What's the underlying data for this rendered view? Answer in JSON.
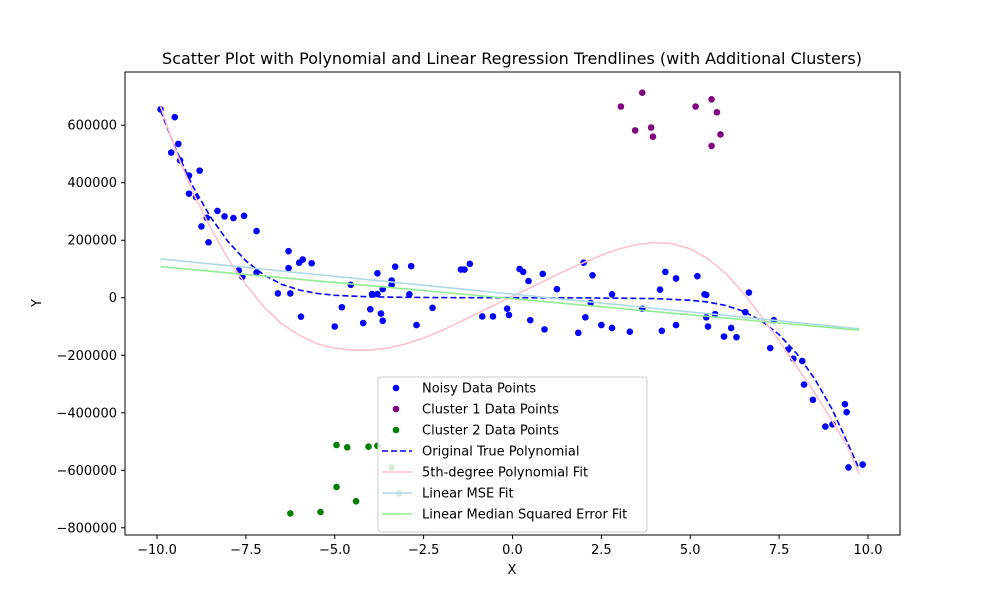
{
  "chart_data": {
    "type": "scatter",
    "title": "Scatter Plot with Polynomial and Linear Regression Trendlines (with Additional Clusters)",
    "xlabel": "X",
    "ylabel": "Y",
    "xlim": [
      -10.9,
      10.9
    ],
    "ylim": [
      -825000,
      785000
    ],
    "xticks": [
      -10.0,
      -7.5,
      -5.0,
      -2.5,
      0.0,
      2.5,
      5.0,
      7.5,
      10.0
    ],
    "xtick_labels": [
      "−10.0",
      "−7.5",
      "−5.0",
      "−2.5",
      "0.0",
      "2.5",
      "5.0",
      "7.5",
      "10.0"
    ],
    "yticks": [
      -800000,
      -600000,
      -400000,
      -200000,
      0,
      200000,
      400000,
      600000
    ],
    "ytick_labels": [
      "−800000",
      "−600000",
      "−400000",
      "−200000",
      "0",
      "200000",
      "400000",
      "600000"
    ],
    "grid": false,
    "legend_position": "lower-center",
    "scatter_series": [
      {
        "name": "Noisy Data Points",
        "color": "#0000ff",
        "points": [
          [
            -9.9,
            655000
          ],
          [
            -9.6,
            505000
          ],
          [
            -9.5,
            628000
          ],
          [
            -9.4,
            535000
          ],
          [
            -9.35,
            478000
          ],
          [
            -9.1,
            425000
          ],
          [
            -9.1,
            362000
          ],
          [
            -8.9,
            350000
          ],
          [
            -8.8,
            442000
          ],
          [
            -8.75,
            248000
          ],
          [
            -8.6,
            278000
          ],
          [
            -8.55,
            193000
          ],
          [
            -8.3,
            302000
          ],
          [
            -8.1,
            283000
          ],
          [
            -7.85,
            277000
          ],
          [
            -7.55,
            285000
          ],
          [
            -7.2,
            232000
          ],
          [
            -7.7,
            95000
          ],
          [
            -7.6,
            73000
          ],
          [
            -7.2,
            88000
          ],
          [
            -6.6,
            15000
          ],
          [
            -6.3,
            162000
          ],
          [
            -6.3,
            103000
          ],
          [
            -6.25,
            15000
          ],
          [
            -6.0,
            122000
          ],
          [
            -5.9,
            133000
          ],
          [
            -5.95,
            -66000
          ],
          [
            -5.65,
            120000
          ],
          [
            -5.0,
            -100000
          ],
          [
            -4.8,
            -33000
          ],
          [
            -4.55,
            45000
          ],
          [
            -4.2,
            -88000
          ],
          [
            -4.0,
            -40000
          ],
          [
            -3.95,
            13000
          ],
          [
            -3.8,
            85000
          ],
          [
            -3.8,
            13000
          ],
          [
            -3.65,
            30000
          ],
          [
            -3.7,
            -55000
          ],
          [
            -3.65,
            -80000
          ],
          [
            -3.4,
            60000
          ],
          [
            -3.3,
            108000
          ],
          [
            -3.4,
            45000
          ],
          [
            -2.85,
            110000
          ],
          [
            -2.9,
            12000
          ],
          [
            -2.7,
            -95000
          ],
          [
            -2.25,
            -35000
          ],
          [
            -1.45,
            98000
          ],
          [
            -1.35,
            98000
          ],
          [
            -1.2,
            118000
          ],
          [
            -0.85,
            -65000
          ],
          [
            -0.55,
            -65000
          ],
          [
            -0.15,
            -38000
          ],
          [
            -0.1,
            -60000
          ],
          [
            0.2,
            100000
          ],
          [
            0.3,
            90000
          ],
          [
            0.45,
            58000
          ],
          [
            0.5,
            -78000
          ],
          [
            0.85,
            83000
          ],
          [
            0.9,
            -110000
          ],
          [
            1.25,
            30000
          ],
          [
            1.85,
            -122000
          ],
          [
            2.0,
            122000
          ],
          [
            2.05,
            -68000
          ],
          [
            2.2,
            -18000
          ],
          [
            2.25,
            78000
          ],
          [
            2.5,
            -95000
          ],
          [
            2.8,
            12000
          ],
          [
            2.8,
            -105000
          ],
          [
            3.3,
            -118000
          ],
          [
            3.65,
            -38000
          ],
          [
            4.15,
            28000
          ],
          [
            4.2,
            -115000
          ],
          [
            4.3,
            90000
          ],
          [
            4.6,
            67000
          ],
          [
            4.6,
            -95000
          ],
          [
            5.2,
            75000
          ],
          [
            5.4,
            12000
          ],
          [
            5.45,
            10000
          ],
          [
            5.45,
            -68000
          ],
          [
            5.5,
            -100000
          ],
          [
            5.7,
            -57000
          ],
          [
            5.95,
            -135000
          ],
          [
            6.15,
            -105000
          ],
          [
            6.3,
            -137000
          ],
          [
            6.55,
            -50000
          ],
          [
            6.65,
            18000
          ],
          [
            7.25,
            -175000
          ],
          [
            7.35,
            -78000
          ],
          [
            7.75,
            -180000
          ],
          [
            7.9,
            -212000
          ],
          [
            8.15,
            -220000
          ],
          [
            8.2,
            -302000
          ],
          [
            8.45,
            -355000
          ],
          [
            8.8,
            -448000
          ],
          [
            9.0,
            -440000
          ],
          [
            9.35,
            -370000
          ],
          [
            9.4,
            -398000
          ],
          [
            9.45,
            -590000
          ],
          [
            9.85,
            -580000
          ]
        ]
      },
      {
        "name": "Cluster 1 Data Points",
        "color": "#800080",
        "points": [
          [
            3.05,
            665000
          ],
          [
            3.45,
            582000
          ],
          [
            3.65,
            713000
          ],
          [
            3.9,
            592000
          ],
          [
            3.95,
            560000
          ],
          [
            5.15,
            665000
          ],
          [
            5.6,
            690000
          ],
          [
            5.6,
            528000
          ],
          [
            5.75,
            645000
          ],
          [
            5.85,
            568000
          ]
        ]
      },
      {
        "name": "Cluster 2 Data Points",
        "color": "#008000",
        "points": [
          [
            -6.25,
            -750000
          ],
          [
            -5.4,
            -745000
          ],
          [
            -4.95,
            -512000
          ],
          [
            -4.95,
            -658000
          ],
          [
            -4.65,
            -520000
          ],
          [
            -4.4,
            -708000
          ],
          [
            -4.05,
            -518000
          ],
          [
            -3.8,
            -515000
          ],
          [
            -3.4,
            -590000
          ],
          [
            -3.2,
            -680000
          ]
        ]
      }
    ],
    "line_series": [
      {
        "name": "Original True Polynomial",
        "color": "#0000ff",
        "style": "dashed",
        "points": [
          [
            -9.9,
            650000
          ],
          [
            -9.5,
            525000
          ],
          [
            -9.0,
            390000
          ],
          [
            -8.5,
            282000
          ],
          [
            -8.0,
            195000
          ],
          [
            -7.5,
            128000
          ],
          [
            -7.0,
            80000
          ],
          [
            -6.5,
            47000
          ],
          [
            -6.0,
            27000
          ],
          [
            -5.5,
            15000
          ],
          [
            -5.0,
            8500
          ],
          [
            -4.0,
            3000
          ],
          [
            -3.0,
            1500
          ],
          [
            -2.0,
            500
          ],
          [
            -1.0,
            100
          ],
          [
            0.0,
            0
          ],
          [
            1.0,
            -100
          ],
          [
            2.0,
            -500
          ],
          [
            3.0,
            -1500
          ],
          [
            4.0,
            -3000
          ],
          [
            5.0,
            -8500
          ],
          [
            5.5,
            -15000
          ],
          [
            6.0,
            -27000
          ],
          [
            6.5,
            -47000
          ],
          [
            7.0,
            -80000
          ],
          [
            7.5,
            -128000
          ],
          [
            8.0,
            -195000
          ],
          [
            8.5,
            -282000
          ],
          [
            9.0,
            -390000
          ],
          [
            9.5,
            -525000
          ],
          [
            9.75,
            -595000
          ]
        ]
      },
      {
        "name": "5th-degree Polynomial Fit",
        "color": "#ffc0cb",
        "style": "solid",
        "points": [
          [
            -9.9,
            665000
          ],
          [
            -9.5,
            520000
          ],
          [
            -9.0,
            370000
          ],
          [
            -8.5,
            245000
          ],
          [
            -8.0,
            135000
          ],
          [
            -7.5,
            45000
          ],
          [
            -7.0,
            -30000
          ],
          [
            -6.5,
            -90000
          ],
          [
            -6.0,
            -130000
          ],
          [
            -5.5,
            -160000
          ],
          [
            -5.0,
            -175000
          ],
          [
            -4.5,
            -182000
          ],
          [
            -4.0,
            -182000
          ],
          [
            -3.5,
            -175000
          ],
          [
            -3.0,
            -160000
          ],
          [
            -2.5,
            -140000
          ],
          [
            -2.0,
            -115000
          ],
          [
            -1.5,
            -85000
          ],
          [
            -1.0,
            -55000
          ],
          [
            -0.5,
            -25000
          ],
          [
            0.0,
            5000
          ],
          [
            0.5,
            35000
          ],
          [
            1.0,
            65000
          ],
          [
            1.5,
            95000
          ],
          [
            2.0,
            122000
          ],
          [
            2.5,
            148000
          ],
          [
            3.0,
            170000
          ],
          [
            3.5,
            185000
          ],
          [
            4.0,
            192000
          ],
          [
            4.5,
            188000
          ],
          [
            5.0,
            170000
          ],
          [
            5.5,
            135000
          ],
          [
            6.0,
            85000
          ],
          [
            6.5,
            15000
          ],
          [
            7.0,
            -65000
          ],
          [
            7.5,
            -150000
          ],
          [
            8.0,
            -240000
          ],
          [
            8.5,
            -330000
          ],
          [
            9.0,
            -430000
          ],
          [
            9.5,
            -535000
          ],
          [
            9.75,
            -615000
          ]
        ]
      },
      {
        "name": "Linear MSE Fit",
        "color": "#add8e6",
        "style": "solid",
        "points": [
          [
            -9.9,
            135000
          ],
          [
            9.75,
            -108000
          ]
        ]
      },
      {
        "name": "Linear Median Squared Error Fit",
        "color": "#90ee90",
        "style": "solid",
        "points": [
          [
            -9.9,
            108000
          ],
          [
            9.75,
            -113000
          ]
        ]
      }
    ]
  }
}
